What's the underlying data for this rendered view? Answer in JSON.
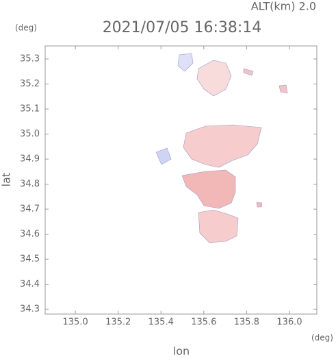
{
  "chart_data": {
    "type": "map",
    "title": "2021/07/05 16:38:14",
    "subtitle": "ALT(km) 2.0",
    "x_label": "lon",
    "y_label": "lat",
    "x_unit": "(deg)",
    "y_unit": "(deg)",
    "xlim": [
      134.859,
      136.128
    ],
    "ylim": [
      34.281,
      35.352
    ],
    "xticks": [
      {
        "value": 135,
        "label": "135.0"
      },
      135.2,
      135.4,
      135.6,
      135.8,
      {
        "value": 136,
        "label": "136.0"
      }
    ],
    "yticks": [
      34.3,
      34.4,
      34.5,
      34.6,
      34.7,
      34.8,
      34.9,
      {
        "value": 35,
        "label": "35.0"
      },
      35.1,
      35.2,
      35.3
    ]
  }
}
